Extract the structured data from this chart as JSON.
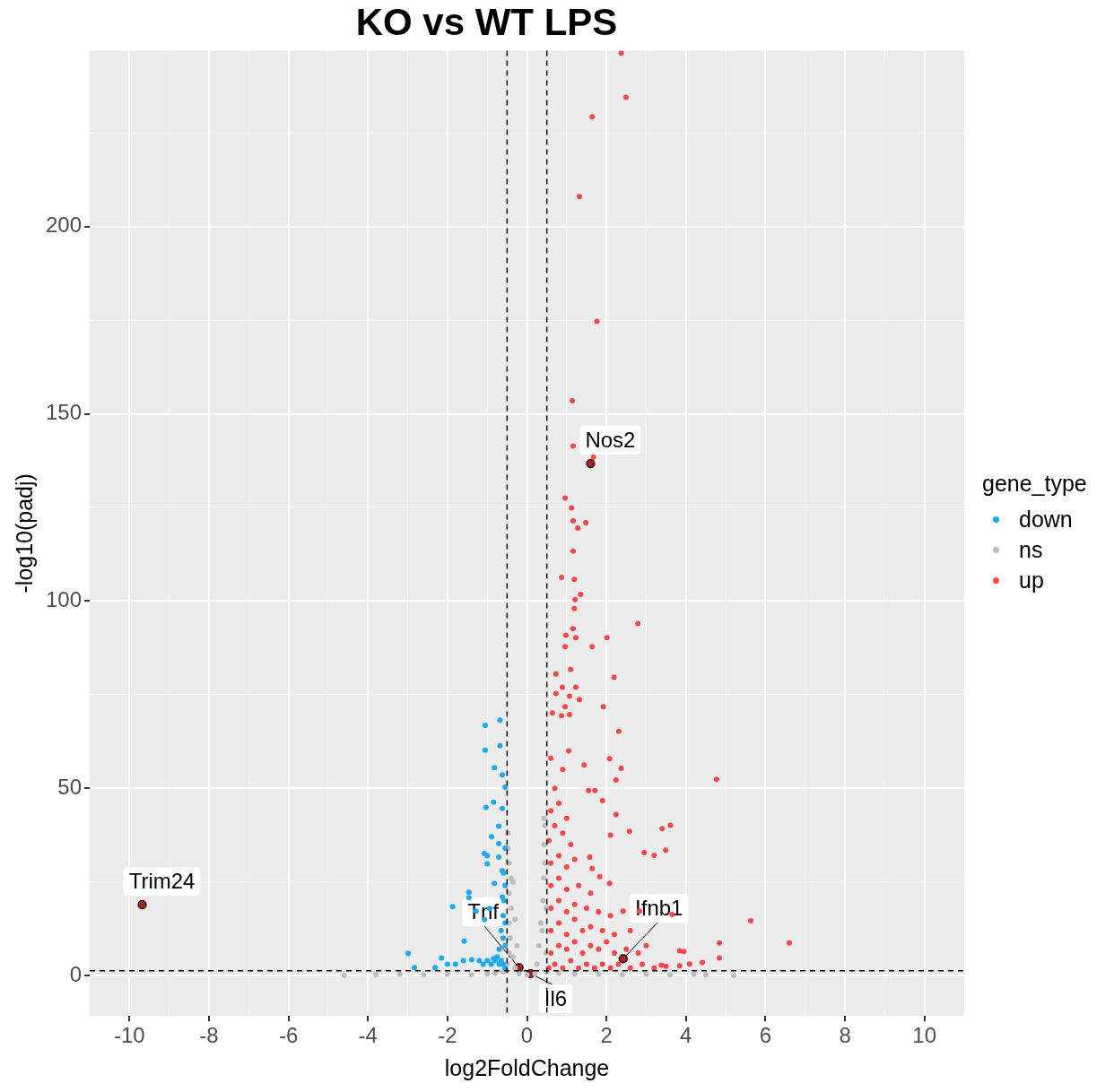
{
  "chart_data": {
    "type": "scatter",
    "title": "KO vs WT LPS",
    "xlabel": "log2FoldChange",
    "ylabel": "-log10(padj)",
    "legend_title": "gene_type",
    "legend": "right",
    "marker": "circle",
    "grid": true,
    "xlim": [
      -11,
      11
    ],
    "ylim": [
      -10.8,
      247
    ],
    "xticks": [
      -10,
      {
        "value": -9,
        "label": null
      },
      -8,
      {
        "value": -7,
        "label": null
      },
      -6,
      {
        "value": -5,
        "label": null
      },
      -4,
      {
        "value": -3,
        "label": null
      },
      -2,
      {
        "value": -1,
        "label": null
      },
      0,
      {
        "value": 1,
        "label": null
      },
      2,
      {
        "value": 3,
        "label": null
      },
      4,
      {
        "value": 5,
        "label": null
      },
      6,
      {
        "value": 7,
        "label": null
      },
      8,
      {
        "value": 9,
        "label": null
      },
      10
    ],
    "yticks": [
      0,
      {
        "value": 25,
        "label": null
      },
      50,
      {
        "value": 75,
        "label": null
      },
      100,
      {
        "value": 125,
        "label": null
      },
      150,
      {
        "value": 175,
        "label": null
      },
      200,
      {
        "value": 225,
        "label": null
      }
    ],
    "ref_lines": [
      {
        "axis": "x",
        "value": -0.5,
        "line_style": "dashed",
        "color": "#000000"
      },
      {
        "axis": "x",
        "value": 0.5,
        "line_style": "dashed",
        "color": "#000000"
      },
      {
        "axis": "y",
        "value": 1.3,
        "line_style": "dashed",
        "color": "#000000"
      }
    ],
    "series": [
      {
        "name": "down",
        "color": "#1ea9f0",
        "x": [
          -1.05,
          -0.68,
          -0.68,
          -1.05,
          -0.82,
          -0.62,
          -0.55,
          -0.84,
          -1.03,
          -0.62,
          -0.71,
          -0.89,
          -1.07,
          -1.0,
          -0.71,
          -0.82,
          -1.46,
          -1.87,
          -1.28,
          -0.94,
          -1.07,
          -1.58,
          -2.99,
          -2.15,
          -2.83,
          -2.31,
          -1.39,
          -0.84,
          -0.62,
          -0.59,
          -0.71,
          -1.46,
          -1.0,
          -0.55,
          -0.6,
          -0.65,
          -0.7,
          -0.75,
          -0.8,
          -0.9,
          -1.0,
          -1.1,
          -1.2,
          -0.55,
          -0.6,
          -0.7,
          -0.55,
          -0.6,
          -0.65,
          -0.55,
          -0.58,
          -0.62,
          -0.55,
          -1.6,
          -1.8,
          -2.0
        ],
        "values": [
          60.2,
          61.4,
          68.2,
          66.8,
          55.5,
          53.6,
          50.3,
          46.3,
          44.9,
          44.6,
          39.9,
          37.1,
          32.6,
          29.8,
          31.6,
          24.6,
          20.8,
          18.4,
          17.2,
          17.9,
          14.9,
          9.2,
          5.9,
          4.7,
          2.1,
          2.1,
          4.2,
          4.5,
          21.0,
          27.4,
          35.2,
          22.2,
          32,
          2,
          3,
          4,
          3,
          5,
          4,
          3,
          4,
          3,
          4,
          8,
          10,
          7,
          14,
          16,
          12,
          24,
          20,
          28,
          34,
          4,
          3,
          3
        ]
      },
      {
        "name": "ns",
        "color": "#bdbdbd",
        "x": [
          -4.6,
          5.2,
          -3.8,
          -3.2,
          -2.6,
          -2,
          -1.4,
          -1,
          -0.8,
          -0.6,
          -0.5,
          -0.45,
          -0.42,
          -0.45,
          -0.4,
          -0.45,
          -0.4,
          -0.45,
          -0.48,
          -0.48,
          -0.35,
          -0.3,
          -0.25,
          -0.2,
          0,
          0.2,
          0.25,
          0.3,
          0.35,
          0.4,
          0.42,
          0.45,
          0.43,
          0.45,
          0.43,
          0.38,
          0.48,
          0.48,
          0.5,
          0.8,
          1.2,
          1.8,
          2.4,
          3,
          3.6,
          4.2,
          4.5,
          -0.3,
          -0.35
        ],
        "values": [
          0,
          0,
          0.2,
          0.3,
          0.2,
          0.3,
          0.2,
          0.4,
          0.6,
          1,
          3,
          6,
          10,
          14,
          18,
          22,
          26,
          30,
          34,
          38,
          5,
          2,
          8,
          0.5,
          0.2,
          0.5,
          3,
          8,
          14,
          20,
          26,
          30,
          35,
          40,
          42,
          12,
          18,
          6,
          1,
          0.6,
          0.4,
          0.3,
          0.2,
          0.3,
          0.2,
          0.3,
          0.2,
          15,
          25
        ]
      },
      {
        "name": "up",
        "color": "#f8484a",
        "x": [
          2.37,
          2.49,
          1.64,
          1.32,
          1.76,
          1.14,
          1.16,
          1.67,
          0.96,
          1.12,
          1.16,
          1.28,
          1.48,
          1.16,
          0.87,
          1.19,
          1.35,
          1.21,
          1.19,
          2.79,
          0.98,
          1.16,
          1.23,
          1.64,
          0.96,
          2.01,
          1.1,
          0.73,
          2.19,
          0.89,
          1.23,
          0.73,
          1.07,
          1.32,
          0.96,
          1.92,
          0.64,
          0.87,
          1.07,
          2.31,
          4.77,
          5.63,
          6.6,
          4.84,
          4.84,
          2.24,
          2.37,
          2.08,
          1.44,
          1.55,
          1.71,
          1.9,
          2.24,
          2.58,
          2.1,
          2.95,
          3.2,
          3.49,
          3.4,
          3.61,
          2.42,
          2.83,
          3.65,
          3.84,
          3.95,
          4.41,
          4.09,
          3.38,
          3.84,
          1.64,
          1.83,
          2.08,
          1.58,
          0.55,
          0.7,
          0.9,
          1.1,
          1.3,
          1.5,
          1.7,
          1.9,
          2.1,
          2.3,
          2.6,
          2.9,
          3.2,
          3.5,
          0.6,
          0.8,
          1.0,
          1.2,
          1.4,
          1.6,
          1.8,
          2.0,
          2.2,
          2.5,
          2.8,
          3.0,
          0.6,
          0.8,
          1.0,
          1.2,
          1.4,
          1.6,
          1.9,
          2.2,
          2.6,
          0.6,
          0.8,
          1.0,
          1.2,
          1.5,
          1.8,
          2.1,
          0.6,
          0.8,
          1.0,
          1.3,
          1.6,
          0.6,
          0.8,
          1.0,
          1.2,
          0.55,
          0.7,
          0.9,
          1.1,
          0.6,
          0.8,
          1.0,
          0.7,
          0.9,
          0.6,
          1.05
        ],
        "values": [
          246.3,
          234.5,
          229.3,
          208,
          174.7,
          153.5,
          141.4,
          138.4,
          127.5,
          124.9,
          121.4,
          119.5,
          120.9,
          113.3,
          106.3,
          105.8,
          101.8,
          100.4,
          98,
          94,
          90.9,
          92.6,
          90.2,
          87.8,
          87.8,
          90.2,
          81.7,
          80.5,
          79.6,
          77,
          77,
          75.3,
          74.6,
          73.7,
          71.8,
          71.8,
          70.1,
          69.4,
          69.7,
          65.2,
          52.4,
          14.6,
          8.7,
          8.7,
          4.7,
          52.2,
          55.3,
          57.9,
          56.2,
          49.4,
          49.4,
          46.7,
          43,
          38.5,
          37.5,
          32.8,
          32.1,
          33.5,
          39.2,
          40.1,
          17.2,
          17.2,
          16.3,
          6.6,
          6.4,
          3.5,
          3.1,
          2.8,
          2.6,
          28.6,
          26.4,
          24.6,
          31.6,
          2,
          3,
          2,
          4,
          2,
          3,
          2,
          3,
          2,
          3,
          2,
          3,
          2,
          2.5,
          6,
          8,
          7,
          9,
          6,
          8,
          7,
          9,
          6,
          7,
          6,
          8,
          12,
          14,
          11,
          15,
          12,
          13,
          12,
          11,
          12,
          18,
          20,
          17,
          19,
          18,
          17,
          16,
          24,
          26,
          23,
          24,
          22,
          30,
          32,
          29,
          31,
          36,
          40,
          38,
          35,
          44,
          46,
          42,
          50,
          55,
          58,
          60
        ]
      },
      {
        "color": "#a3211f",
        "x": [
          -9.68,
          1.6,
          -0.2,
          0.09,
          2.42
        ],
        "values": [
          18.9,
          136.7,
          2.1,
          0.5,
          4.5
        ]
      }
    ],
    "annotations": [
      {
        "text": "Trim24",
        "x": -9.68,
        "y": 18.9
      },
      {
        "text": "Nos2",
        "x": 1.6,
        "y": 136.7
      },
      {
        "text": "Tnf",
        "x": -0.2,
        "y": 2.1
      },
      {
        "text": "Il6",
        "x": 0.09,
        "y": 0.5
      },
      {
        "text": "Ifnb1",
        "x": 2.42,
        "y": 4.5
      }
    ]
  }
}
